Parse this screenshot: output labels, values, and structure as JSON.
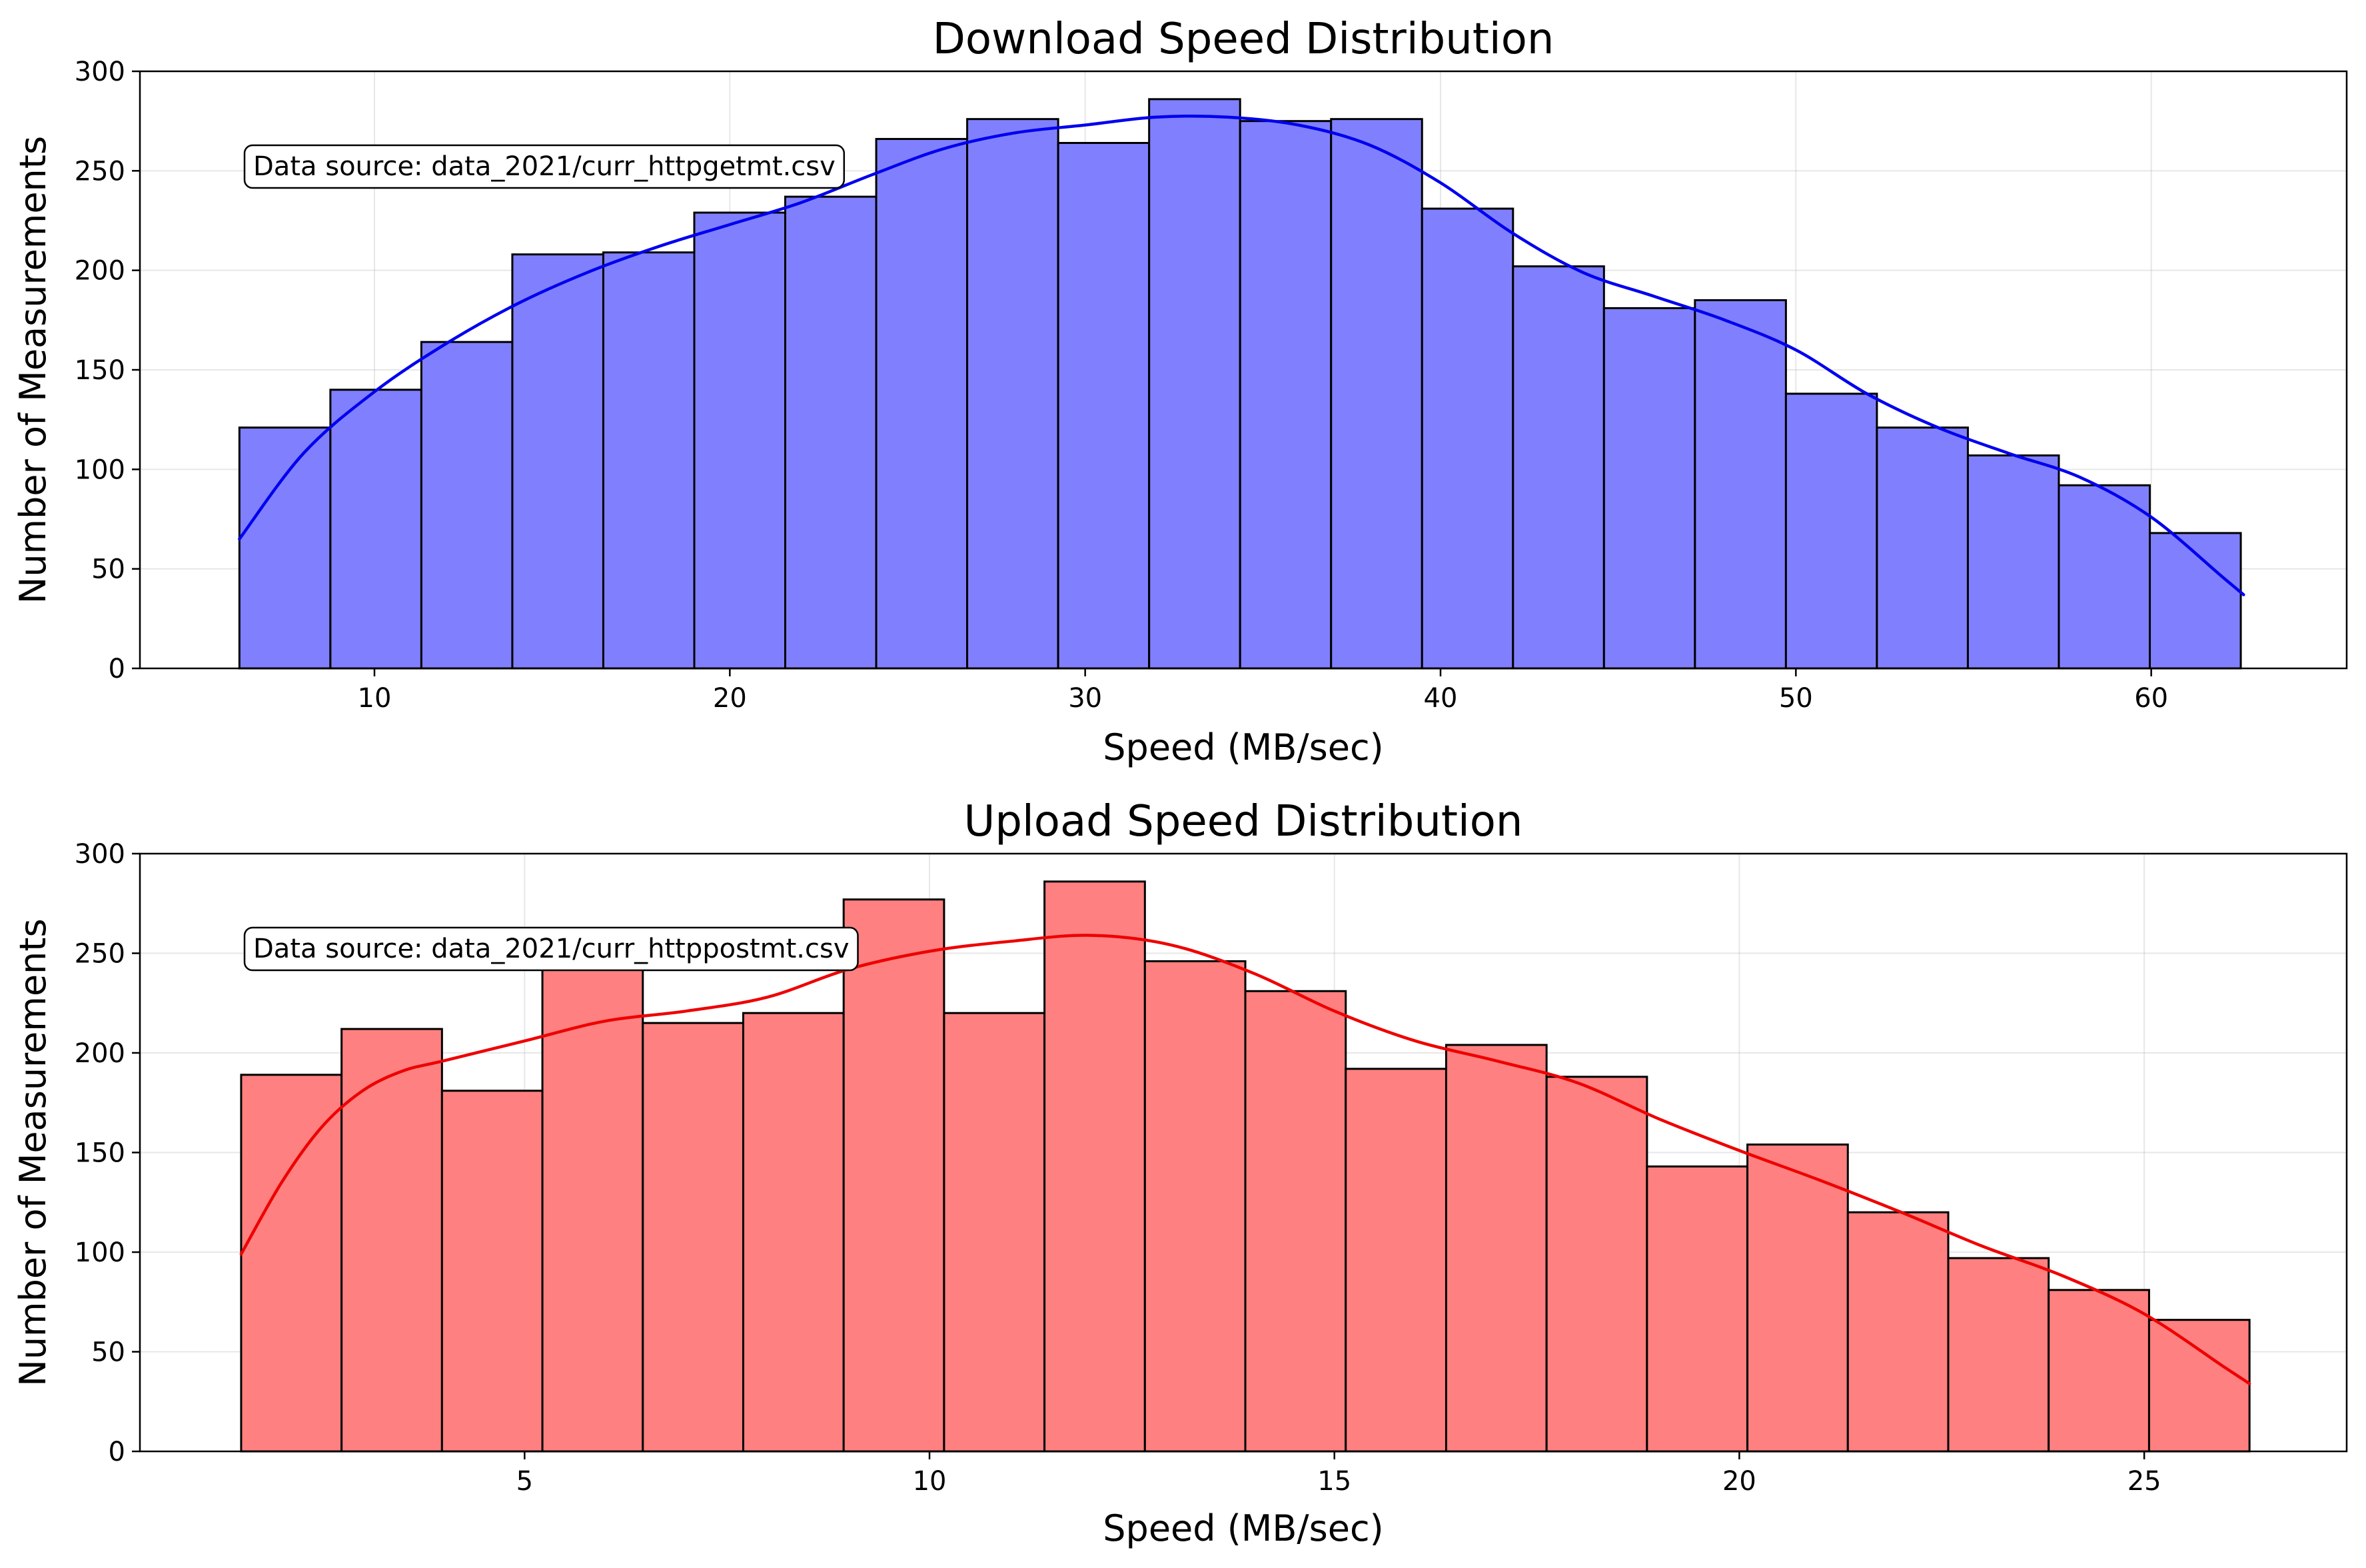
{
  "chart_data": [
    {
      "type": "bar",
      "title": "Download Speed Distribution",
      "xlabel": "Speed (MB/sec)",
      "ylabel": "Number of Measurements",
      "annotation": "Data source: data_2021/curr_httpgetmt.csv",
      "xlim": [
        3.4,
        65.5
      ],
      "ylim": [
        0,
        300
      ],
      "xticks": [
        10,
        20,
        30,
        40,
        50,
        60
      ],
      "yticks": [
        0,
        50,
        100,
        150,
        200,
        250,
        300
      ],
      "grid": true,
      "bin_start": 6.2,
      "bin_width": 2.56,
      "values": [
        121,
        140,
        164,
        208,
        209,
        229,
        237,
        266,
        276,
        264,
        286,
        275,
        276,
        231,
        202,
        181,
        185,
        138,
        121,
        107,
        92,
        68
      ],
      "kde": {
        "x": [
          6.2,
          8,
          10,
          12,
          14,
          16,
          18,
          20,
          22,
          24,
          26,
          28,
          30,
          32,
          34,
          36,
          38,
          40,
          42,
          44,
          46,
          48,
          50,
          52,
          54,
          56,
          58,
          60,
          62,
          62.6
        ],
        "y": [
          65,
          108,
          139,
          163,
          183,
          199,
          212,
          223,
          234,
          248,
          261,
          269,
          273,
          277,
          277,
          273,
          263,
          244,
          219,
          199,
          187,
          175,
          160,
          138,
          121,
          108,
          96,
          76,
          46,
          37
        ]
      },
      "colors": {
        "fill": "#8080ff",
        "line": "#0000ee"
      }
    },
    {
      "type": "bar",
      "title": "Upload Speed Distribution",
      "xlabel": "Speed (MB/sec)",
      "ylabel": "Number of Measurements",
      "annotation": "Data source: data_2021/curr_httppostmt.csv",
      "xlim": [
        0.25,
        27.5
      ],
      "ylim": [
        0,
        300
      ],
      "xticks": [
        5,
        10,
        15,
        20,
        25
      ],
      "yticks": [
        0,
        50,
        100,
        150,
        200,
        250,
        300
      ],
      "grid": true,
      "bin_start": 1.5,
      "bin_width": 1.24,
      "values": [
        189,
        212,
        181,
        245,
        215,
        220,
        277,
        220,
        286,
        246,
        231,
        192,
        204,
        188,
        143,
        154,
        120,
        97,
        81,
        66
      ],
      "kde": {
        "x": [
          1.5,
          2,
          2.5,
          3,
          3.5,
          4,
          5,
          6,
          7,
          8,
          9,
          10,
          11,
          12,
          13,
          14,
          15,
          16,
          17,
          18,
          19,
          20,
          21,
          22,
          23,
          24,
          25,
          26,
          26.3
        ],
        "y": [
          99,
          135,
          163,
          181,
          191,
          196,
          206,
          216,
          221,
          228,
          242,
          251,
          256,
          259,
          254,
          240,
          221,
          206,
          196,
          185,
          167,
          151,
          136,
          120,
          103,
          88,
          69,
          42,
          34
        ]
      },
      "colors": {
        "fill": "#ff8080",
        "line": "#ee0000"
      }
    }
  ]
}
